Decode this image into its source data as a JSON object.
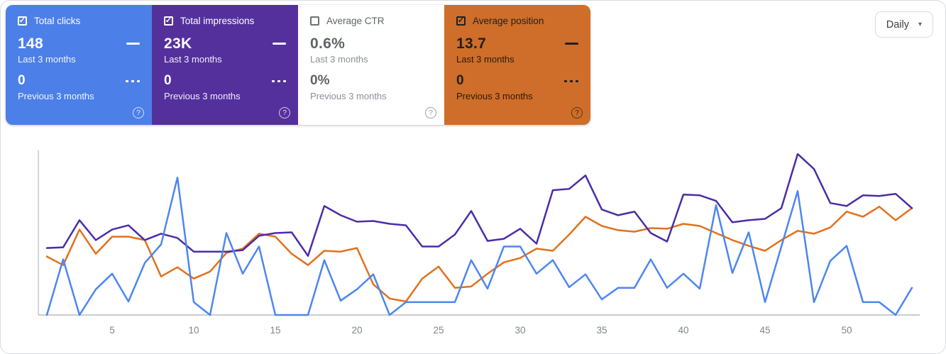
{
  "period_selector": {
    "label": "Daily"
  },
  "icons": {
    "check": "✓",
    "help": "?",
    "caret_down": "▾"
  },
  "colors": {
    "clicks_card_bg": "#4c7fe8",
    "impressions_card_bg": "#54309d",
    "ctr_card_text": "#5f6368",
    "position_card_bg": "#ce6e2a",
    "axis_line": "#c9cbcf",
    "tick_label": "#80868b"
  },
  "cards": [
    {
      "label": "Total clicks",
      "checked": true,
      "checkbox_glyph": "✓",
      "value": "148",
      "value_caption": "Last 3 months",
      "prev_value": "0",
      "prev_caption": "Previous 3 months"
    },
    {
      "label": "Total impressions",
      "checked": true,
      "checkbox_glyph": "✓",
      "value": "23K",
      "value_caption": "Last 3 months",
      "prev_value": "0",
      "prev_caption": "Previous 3 months"
    },
    {
      "label": "Average CTR",
      "checked": false,
      "checkbox_glyph": "",
      "value": "0.6%",
      "value_caption": "Last 3 months",
      "prev_value": "0%",
      "prev_caption": "Previous 3 months"
    },
    {
      "label": "Average position",
      "checked": true,
      "checkbox_glyph": "✓",
      "value": "13.7",
      "value_caption": "Last 3 months",
      "prev_value": "0",
      "prev_caption": "Previous 3 months"
    }
  ],
  "chart_data": {
    "type": "line",
    "title": "",
    "xlabel": "",
    "ylabel": "",
    "x_range": [
      1,
      54
    ],
    "x_ticks": [
      5,
      10,
      15,
      20,
      25,
      30,
      35,
      40,
      45,
      50
    ],
    "y_units": "relative height, 0-100 (chart has no y-axis labels)",
    "grid": false,
    "legend_position": "in metric cards above",
    "series": [
      {
        "id": "clicks",
        "name": "Total clicks",
        "color": "#4d86f2",
        "values": [
          0,
          33.8,
          0,
          15.6,
          25.1,
          8.2,
          31.6,
          42.9,
          83.5,
          7.8,
          0,
          49.8,
          25.1,
          41.6,
          0,
          0,
          0,
          33.3,
          8.7,
          15.6,
          24.7,
          0,
          7.8,
          7.8,
          7.8,
          7.8,
          33.3,
          16,
          41.6,
          41.6,
          25.1,
          33.3,
          16.9,
          24.7,
          9.5,
          16.5,
          16.5,
          33.8,
          16.5,
          25.1,
          16,
          66.7,
          25.5,
          50.2,
          7.8,
          41.6,
          75.3,
          7.8,
          32.9,
          42,
          7.8,
          7.8,
          0,
          16.5
        ]
      },
      {
        "id": "impressions",
        "name": "Total impressions",
        "color": "#4b2da8",
        "values": [
          40.7,
          41.1,
          57.6,
          45.5,
          51.9,
          54.5,
          45.5,
          49.4,
          46.8,
          38.5,
          38.5,
          38.5,
          39.4,
          48.1,
          49.8,
          50.2,
          35.9,
          66.2,
          60.6,
          56.7,
          57.1,
          55.4,
          54.5,
          41.6,
          41.6,
          48.9,
          63.2,
          45,
          46.3,
          52.4,
          43.3,
          75.8,
          76.6,
          84.8,
          64.1,
          60.6,
          62.8,
          49.8,
          44.6,
          73.2,
          72.7,
          69.3,
          56.3,
          57.6,
          58.4,
          64.9,
          97.8,
          88.7,
          68,
          66.2,
          72.7,
          72.3,
          73.6,
          64.9
        ]
      },
      {
        "id": "position",
        "name": "Average position",
        "color": "#e2711d",
        "values": [
          35.5,
          30.3,
          51.9,
          37.2,
          47.6,
          47.6,
          45.5,
          23.4,
          29,
          22.1,
          26.4,
          37.7,
          40.3,
          49.4,
          47.6,
          37.2,
          30.3,
          39,
          38.5,
          40.7,
          18.6,
          10,
          8.2,
          22.1,
          29.4,
          16.5,
          17.3,
          25.1,
          32,
          34.6,
          40.3,
          39,
          48.9,
          59.7,
          54.1,
          51.5,
          50.6,
          52.8,
          52.4,
          55.4,
          54.1,
          49.8,
          45.5,
          42,
          39,
          45.5,
          51.1,
          49.4,
          53.2,
          62.8,
          59.7,
          65.8,
          57.6,
          64.9
        ]
      }
    ]
  }
}
